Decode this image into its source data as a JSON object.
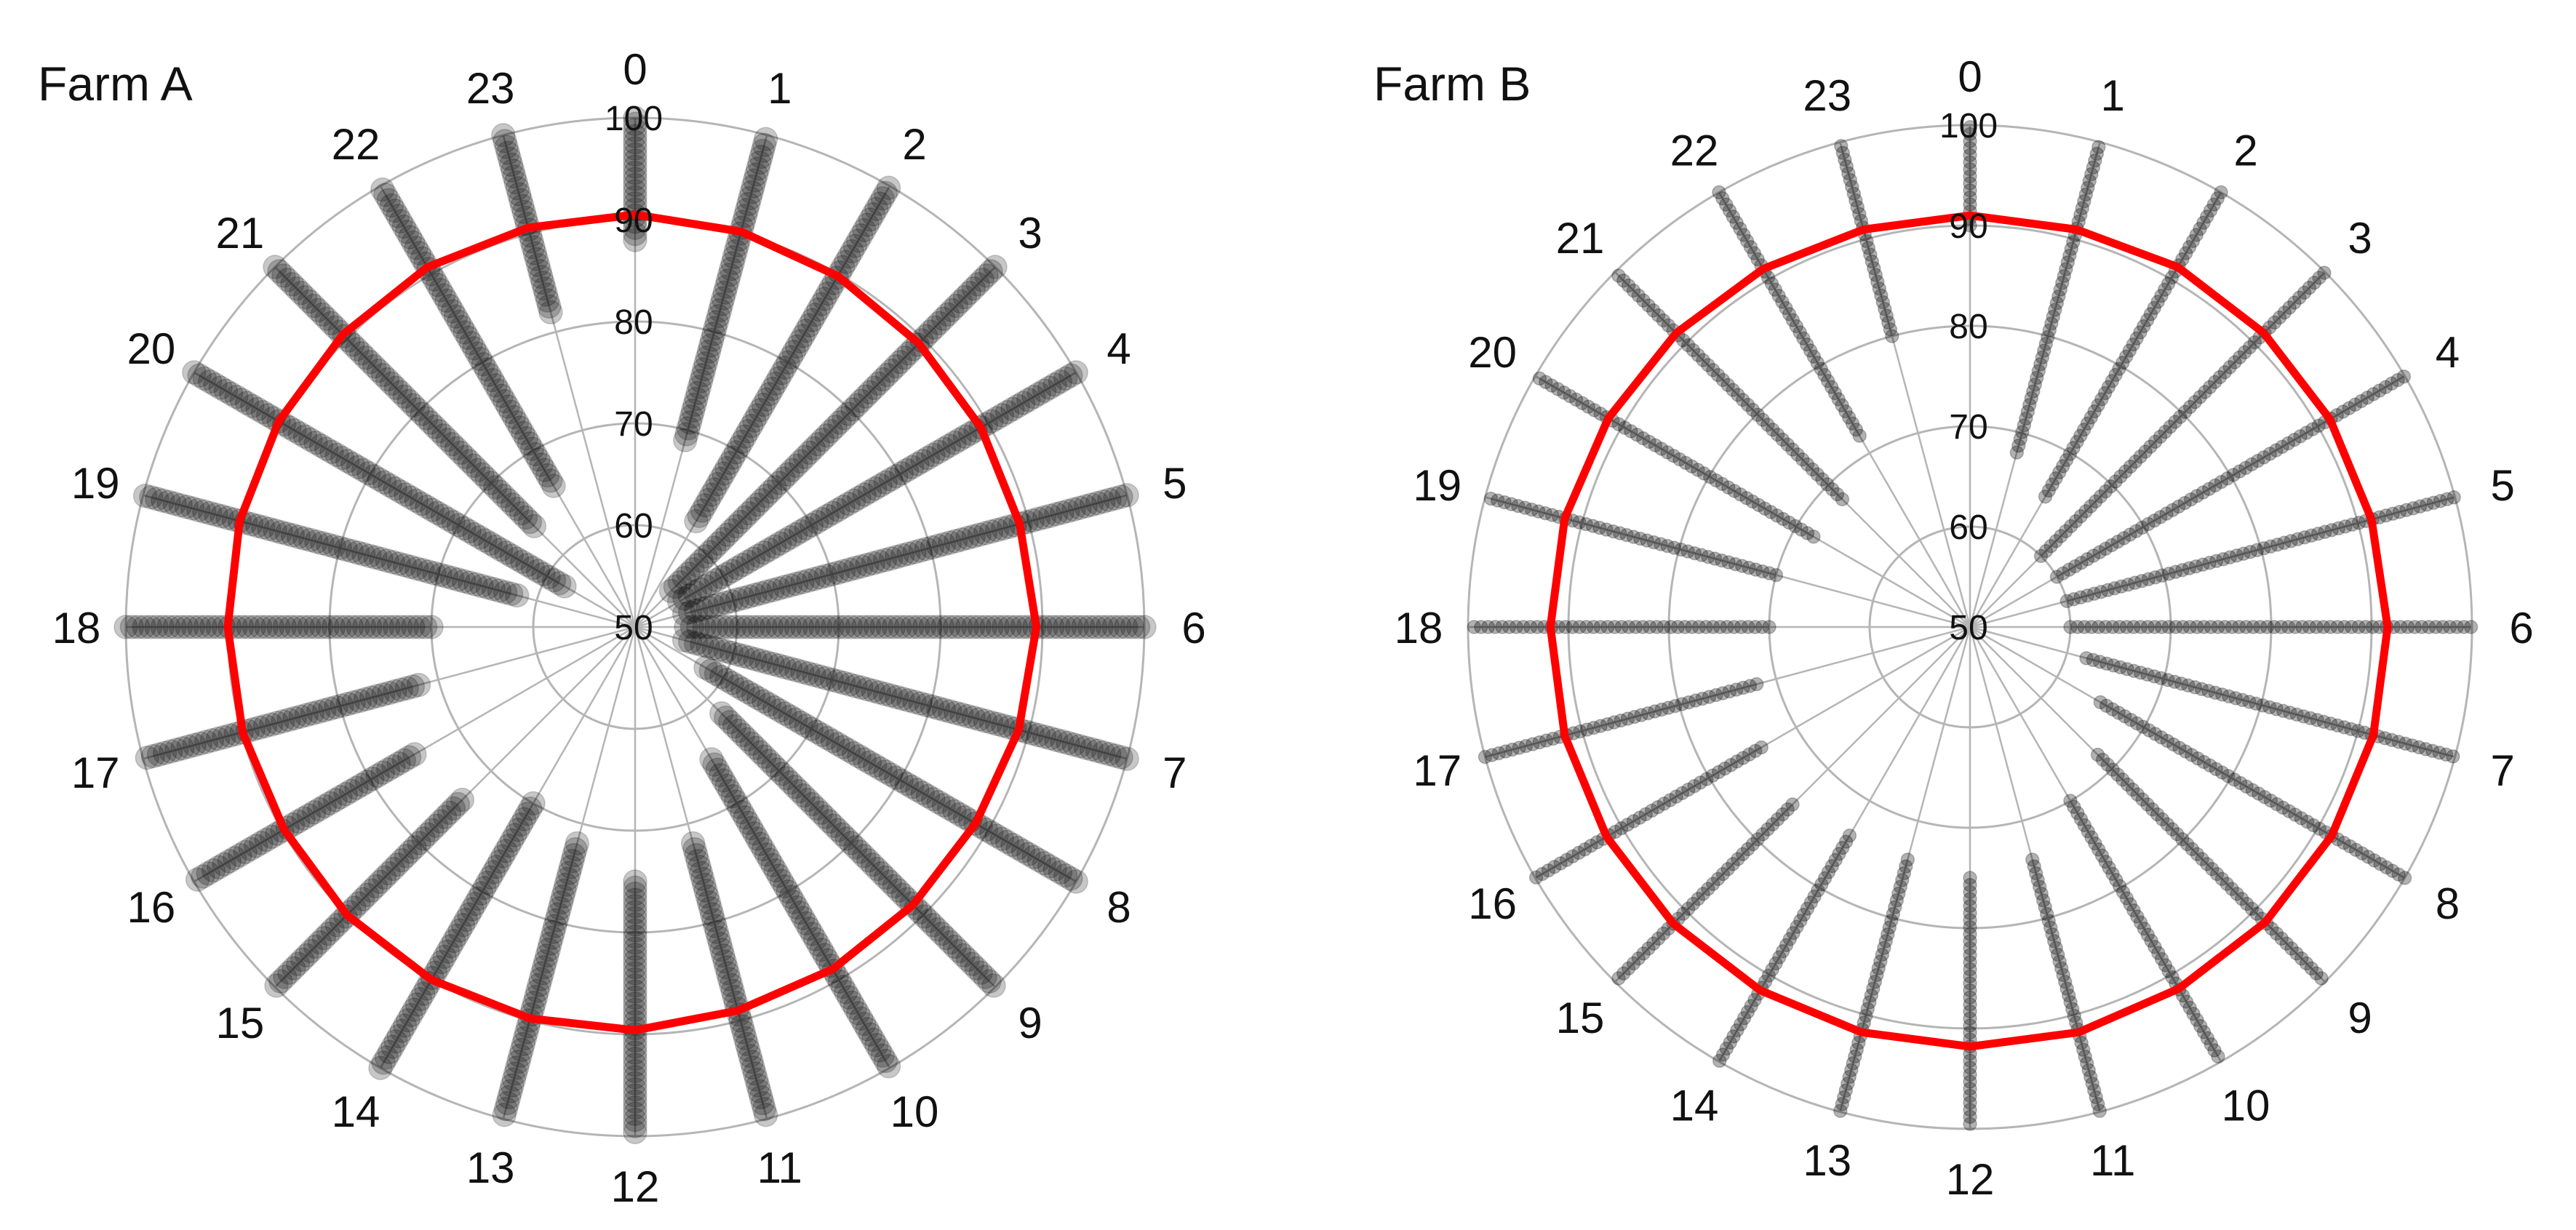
{
  "colors": {
    "background": "#ffffff",
    "grid": "#b5b5b5",
    "points": "#000000",
    "mean_line": "#ff0000",
    "text": "#111111"
  },
  "chart_data": [
    {
      "type": "scatter",
      "coordinate_system": "polar",
      "title": "Farm A",
      "angular_axis": {
        "labels": [
          "0",
          "1",
          "2",
          "3",
          "4",
          "5",
          "6",
          "7",
          "8",
          "9",
          "10",
          "11",
          "12",
          "13",
          "14",
          "15",
          "16",
          "17",
          "18",
          "19",
          "20",
          "21",
          "22",
          "23"
        ]
      },
      "radial_axis": {
        "range": [
          50,
          100
        ],
        "ticks": [
          "50",
          "60",
          "70",
          "80",
          "90",
          "100"
        ]
      },
      "grid": true,
      "point_opacity": 0.22,
      "mean_line": {
        "hours": [
          0,
          1,
          2,
          3,
          4,
          5,
          6,
          7,
          8,
          9,
          10,
          11,
          12,
          13,
          14,
          15,
          16,
          17,
          18,
          19,
          20,
          21,
          22,
          23
        ],
        "values": [
          90.5,
          90.2,
          89.8,
          89.4,
          89.2,
          89.1,
          89.4,
          89.0,
          88.6,
          88.6,
          88.8,
          89.0,
          89.6,
          89.8,
          90.0,
          90.0,
          89.8,
          89.9,
          90.0,
          90.2,
          90.4,
          90.6,
          90.8,
          90.6
        ]
      },
      "points": [
        {
          "hour": 0,
          "min": 88,
          "max": 100
        },
        {
          "hour": 1,
          "min": 69,
          "max": 100
        },
        {
          "hour": 2,
          "min": 62,
          "max": 100
        },
        {
          "hour": 3,
          "min": 55,
          "max": 100
        },
        {
          "hour": 4,
          "min": 55,
          "max": 100
        },
        {
          "hour": 5,
          "min": 55,
          "max": 100
        },
        {
          "hour": 6,
          "min": 55,
          "max": 100
        },
        {
          "hour": 7,
          "min": 55,
          "max": 100
        },
        {
          "hour": 8,
          "min": 58,
          "max": 100
        },
        {
          "hour": 9,
          "min": 62,
          "max": 100
        },
        {
          "hour": 10,
          "min": 65,
          "max": 100
        },
        {
          "hour": 11,
          "min": 72,
          "max": 100
        },
        {
          "hour": 12,
          "min": 75,
          "max": 100
        },
        {
          "hour": 13,
          "min": 72,
          "max": 100
        },
        {
          "hour": 14,
          "min": 70,
          "max": 100
        },
        {
          "hour": 15,
          "min": 74,
          "max": 100
        },
        {
          "hour": 16,
          "min": 75,
          "max": 100
        },
        {
          "hour": 17,
          "min": 72,
          "max": 100
        },
        {
          "hour": 18,
          "min": 70,
          "max": 100
        },
        {
          "hour": 19,
          "min": 62,
          "max": 100
        },
        {
          "hour": 20,
          "min": 58,
          "max": 100
        },
        {
          "hour": 21,
          "min": 64,
          "max": 100
        },
        {
          "hour": 22,
          "min": 66,
          "max": 100
        },
        {
          "hour": 23,
          "min": 82,
          "max": 100
        }
      ]
    },
    {
      "type": "scatter",
      "coordinate_system": "polar",
      "title": "Farm B",
      "angular_axis": {
        "labels": [
          "0",
          "1",
          "2",
          "3",
          "4",
          "5",
          "6",
          "7",
          "8",
          "9",
          "10",
          "11",
          "12",
          "13",
          "14",
          "15",
          "16",
          "17",
          "18",
          "19",
          "20",
          "21",
          "22",
          "23"
        ]
      },
      "radial_axis": {
        "range": [
          50,
          100
        ],
        "ticks": [
          "50",
          "60",
          "70",
          "80",
          "90",
          "100"
        ]
      },
      "grid": true,
      "point_opacity": 0.3,
      "mean_line": {
        "hours": [
          0,
          1,
          2,
          3,
          4,
          5,
          6,
          7,
          8,
          9,
          10,
          11,
          12,
          13,
          14,
          15,
          16,
          17,
          18,
          19,
          20,
          21,
          22,
          23
        ],
        "values": [
          91.0,
          91.0,
          91.4,
          91.4,
          91.4,
          91.4,
          91.6,
          91.6,
          91.6,
          91.6,
          91.6,
          91.8,
          91.8,
          91.8,
          91.8,
          91.8,
          91.8,
          91.8,
          91.8,
          91.8,
          91.6,
          91.4,
          91.2,
          91.0
        ]
      },
      "points": [
        {
          "hour": 0,
          "min": 90,
          "max": 100
        },
        {
          "hour": 1,
          "min": 68,
          "max": 100
        },
        {
          "hour": 2,
          "min": 65,
          "max": 100
        },
        {
          "hour": 3,
          "min": 60,
          "max": 100
        },
        {
          "hour": 4,
          "min": 60,
          "max": 100
        },
        {
          "hour": 5,
          "min": 60,
          "max": 100
        },
        {
          "hour": 6,
          "min": 60,
          "max": 100
        },
        {
          "hour": 7,
          "min": 62,
          "max": 100
        },
        {
          "hour": 8,
          "min": 65,
          "max": 100
        },
        {
          "hour": 9,
          "min": 68,
          "max": 100
        },
        {
          "hour": 10,
          "min": 70,
          "max": 100
        },
        {
          "hour": 11,
          "min": 74,
          "max": 100
        },
        {
          "hour": 12,
          "min": 75,
          "max": 100
        },
        {
          "hour": 13,
          "min": 74,
          "max": 100
        },
        {
          "hour": 14,
          "min": 74,
          "max": 100
        },
        {
          "hour": 15,
          "min": 75,
          "max": 100
        },
        {
          "hour": 16,
          "min": 74,
          "max": 100
        },
        {
          "hour": 17,
          "min": 72,
          "max": 100
        },
        {
          "hour": 18,
          "min": 70,
          "max": 100
        },
        {
          "hour": 19,
          "min": 70,
          "max": 100
        },
        {
          "hour": 20,
          "min": 68,
          "max": 100
        },
        {
          "hour": 21,
          "min": 68,
          "max": 100
        },
        {
          "hour": 22,
          "min": 72,
          "max": 100
        },
        {
          "hour": 23,
          "min": 80,
          "max": 100
        }
      ]
    }
  ]
}
